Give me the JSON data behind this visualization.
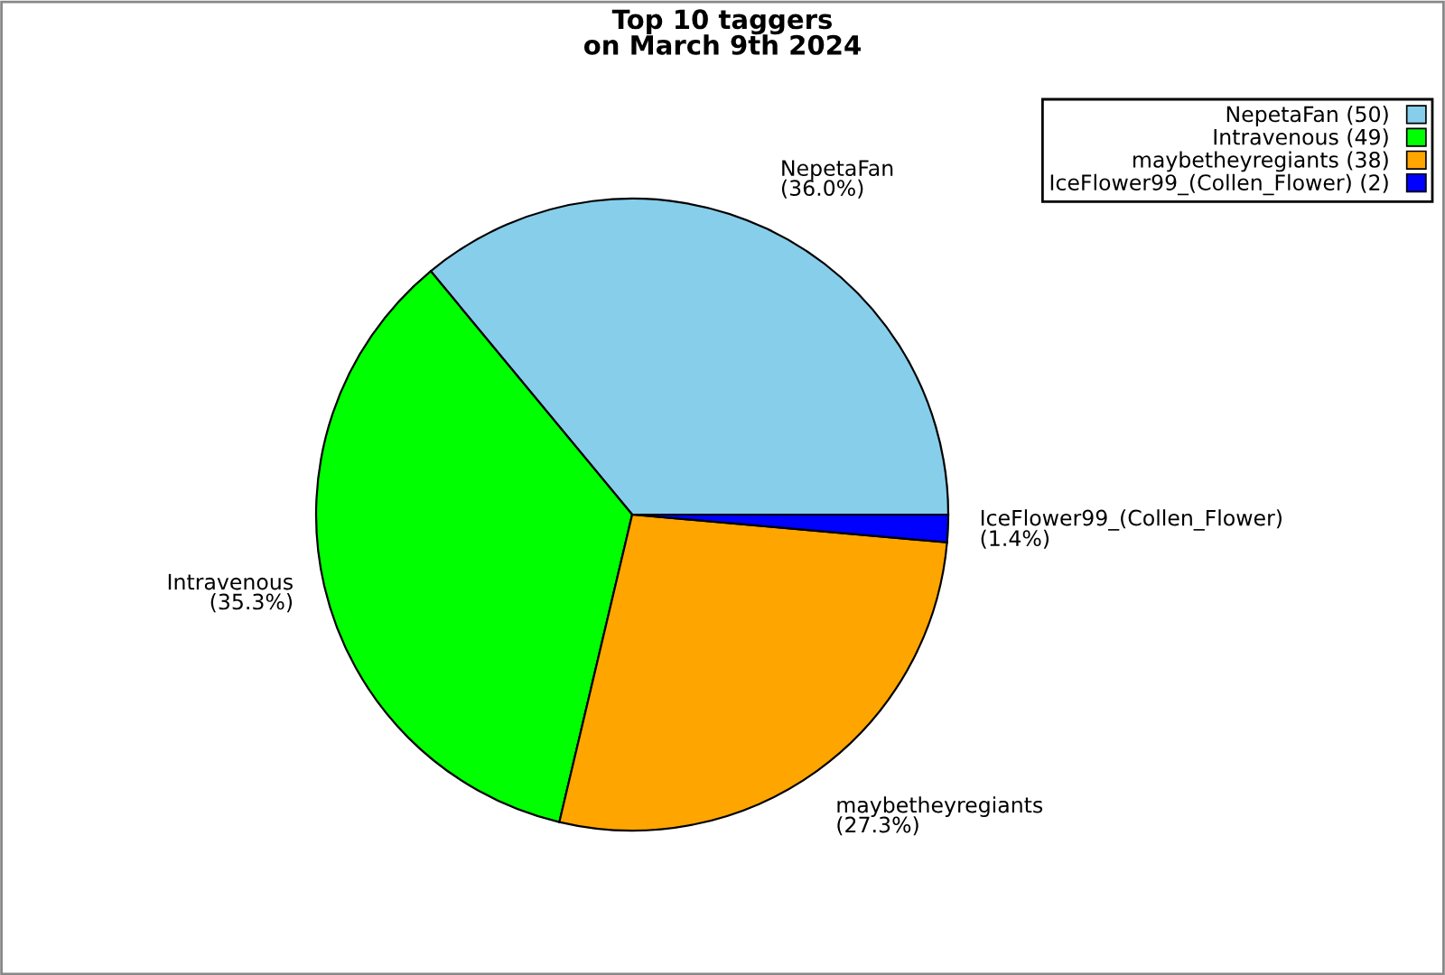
{
  "chart_data": {
    "type": "pie",
    "title": "Top 10 taggers\non March 9th 2024",
    "categories": [
      "NepetaFan (50)",
      "Intravenous (49)",
      "maybetheyregiants (38)",
      "IceFlower99_(Collen_Flower) (2)"
    ],
    "values": [
      36.0,
      35.3,
      27.3,
      1.4
    ],
    "value_labels": [
      "NepetaFan\n(36.0%)",
      "Intravenous\n(35.3%)",
      "maybetheyregiants\n(27.3%)",
      "IceFlower99_(Collen_Flower)\n(1.4%)"
    ],
    "colors": [
      "#87ceeb",
      "#00ff00",
      "#ffa500",
      "#0000ff"
    ],
    "legend": "top right"
  }
}
